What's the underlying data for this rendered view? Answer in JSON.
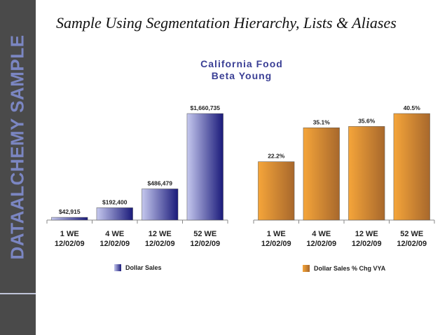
{
  "sidebar": {
    "brand": "DATAALCHEMY SAMPLE"
  },
  "page": {
    "title": "Sample Using Segmentation Hierarchy, Lists & Aliases"
  },
  "chart_header": {
    "title": "California Food",
    "subtitle": "Beta Young"
  },
  "colors": {
    "sidebar_bg": "#4a4a4a",
    "brand_text": "#7b86c2",
    "title_blue": "#3a3f95",
    "bar_blue_light": "#c5c8ee",
    "bar_blue_dark": "#1a1a7a",
    "bar_orange_light": "#f5a53a",
    "bar_orange_dark": "#a8682c"
  },
  "chart_data": [
    {
      "type": "bar",
      "categories": [
        [
          "1 WE",
          "12/02/09"
        ],
        [
          "4 WE",
          "12/02/09"
        ],
        [
          "12 WE",
          "12/02/09"
        ],
        [
          "52 WE",
          "12/02/09"
        ]
      ],
      "values": [
        42915,
        192400,
        486479,
        1660735
      ],
      "data_labels": [
        "$42,915",
        "$192,400",
        "$486,479",
        "$1,660,735"
      ],
      "legend": "Dollar Sales",
      "ylim": [
        0,
        1660735
      ]
    },
    {
      "type": "bar",
      "categories": [
        [
          "1 WE",
          "12/02/09"
        ],
        [
          "4 WE",
          "12/02/09"
        ],
        [
          "12 WE",
          "12/02/09"
        ],
        [
          "52 WE",
          "12/02/09"
        ]
      ],
      "values": [
        22.2,
        35.1,
        35.6,
        40.5
      ],
      "data_labels": [
        "22.2%",
        "35.1%",
        "35.6%",
        "40.5%"
      ],
      "legend": "Dollar Sales % Chg VYA",
      "ylim": [
        0,
        40.5
      ]
    }
  ]
}
